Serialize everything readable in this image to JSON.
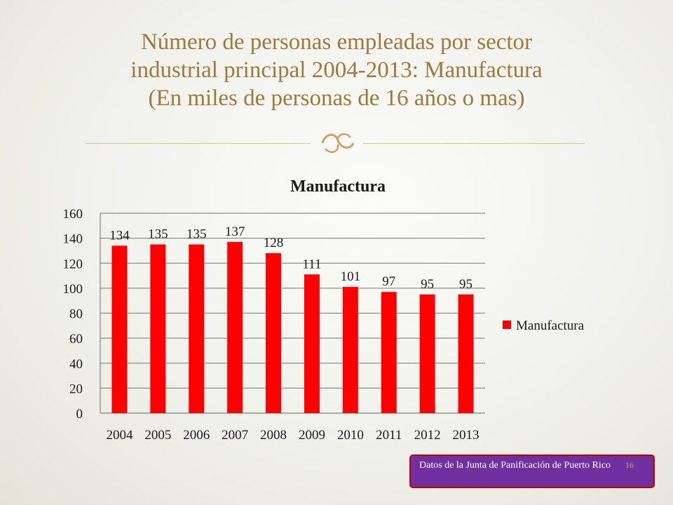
{
  "slide": {
    "title_lines": [
      "Número de personas empleadas por sector",
      "industrial principal 2004-2013: Manufactura",
      "(En miles de personas de 16 años o mas)"
    ],
    "source": "Datos de la Junta de Panificación de Puerto Rico",
    "page_number": "16",
    "ornament_icon": "decorative-swirl-icon"
  },
  "chart_data": {
    "type": "bar",
    "title": "Manufactura",
    "categories": [
      "2004",
      "2005",
      "2006",
      "2007",
      "2008",
      "2009",
      "2010",
      "2011",
      "2012",
      "2013"
    ],
    "series": [
      {
        "name": "Manufactura",
        "values": [
          134,
          135,
          135,
          137,
          128,
          111,
          101,
          97,
          95,
          95
        ],
        "color": "#ff0000"
      }
    ],
    "ylim": [
      0,
      160
    ],
    "yticks": [
      0,
      20,
      40,
      60,
      80,
      100,
      120,
      140,
      160
    ],
    "xlabel": "",
    "ylabel": "",
    "grid": true,
    "legend": "right",
    "data_labels": true
  }
}
